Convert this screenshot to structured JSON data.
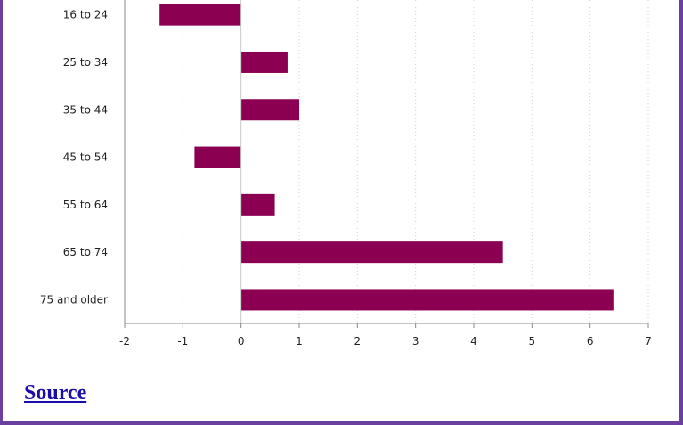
{
  "chart_data": {
    "type": "bar",
    "orientation": "horizontal",
    "categories": [
      "16 to 24",
      "25 to 34",
      "35 to 44",
      "45 to 54",
      "55 to 64",
      "65 to 74",
      "75 and older"
    ],
    "values": [
      -1.4,
      0.8,
      1.0,
      -0.8,
      0.58,
      4.5,
      6.4
    ],
    "xlim": [
      -2,
      7
    ],
    "xticks": [
      "-2",
      "-1",
      "0",
      "1",
      "2",
      "3",
      "4",
      "5",
      "6",
      "7"
    ],
    "grid": "vertical dotted",
    "bar_color": "#8b0050",
    "title": "",
    "xlabel": "",
    "ylabel": ""
  },
  "footer": {
    "source_label": "Source"
  },
  "colors": {
    "border": "#6b3fa0",
    "link": "#1a0dab"
  }
}
